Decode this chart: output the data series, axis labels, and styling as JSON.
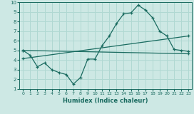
{
  "xlabel": "Humidex (Indice chaleur)",
  "bg_color": "#cde8e4",
  "grid_color": "#b0d8d2",
  "line_color": "#1a6b60",
  "xlim": [
    -0.5,
    23.5
  ],
  "ylim": [
    1,
    10
  ],
  "xticks": [
    0,
    1,
    2,
    3,
    4,
    5,
    6,
    7,
    8,
    9,
    10,
    11,
    12,
    13,
    14,
    15,
    16,
    17,
    18,
    19,
    20,
    21,
    22,
    23
  ],
  "yticks": [
    1,
    2,
    3,
    4,
    5,
    6,
    7,
    8,
    9,
    10
  ],
  "line1_x": [
    0,
    1,
    2,
    3,
    4,
    5,
    6,
    7,
    8,
    9,
    10,
    11,
    12,
    13,
    14,
    15,
    16,
    17,
    18,
    19,
    20,
    21,
    22,
    23
  ],
  "line1_y": [
    5.0,
    4.5,
    3.3,
    3.7,
    3.0,
    2.7,
    2.5,
    1.5,
    2.2,
    4.1,
    4.1,
    5.5,
    6.5,
    7.8,
    8.8,
    8.9,
    9.7,
    9.2,
    8.4,
    7.0,
    6.5,
    5.1,
    5.0,
    4.9
  ],
  "line2_x": [
    0,
    23
  ],
  "line2_y": [
    5.0,
    4.65
  ],
  "line3_x": [
    0,
    23
  ],
  "line3_y": [
    4.15,
    6.5
  ]
}
